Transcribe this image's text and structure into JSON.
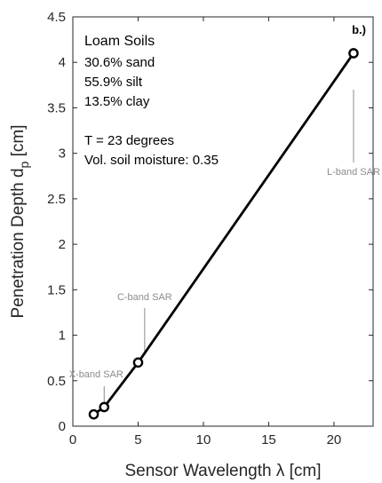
{
  "chart_data": {
    "type": "line",
    "panel_label": "b.)",
    "xlabel": "Sensor Wavelength λ [cm]",
    "ylabel": "Penetration Depth d",
    "ylabel_subscript": "p",
    "ylabel_unit": " [cm]",
    "xlim": [
      0,
      23
    ],
    "ylim": [
      0,
      4.5
    ],
    "xticks": [
      0,
      5,
      10,
      15,
      20
    ],
    "xtick_labels": [
      "0",
      "5",
      "10",
      "15",
      "20"
    ],
    "yticks": [
      0,
      0.5,
      1,
      1.5,
      2,
      2.5,
      3,
      3.5,
      4,
      4.5
    ],
    "ytick_labels": [
      "0",
      "0.5",
      "1",
      "1.5",
      "2",
      "2.5",
      "3",
      "3.5",
      "4",
      "4.5"
    ],
    "grid": false,
    "series": [
      {
        "x": [
          1.6,
          2.4,
          5.0,
          21.5
        ],
        "y": [
          0.13,
          0.21,
          0.7,
          4.1
        ],
        "color": "#000000",
        "marker": "open-circle"
      }
    ],
    "annotation_block": {
      "title": "Loam Soils",
      "lines": [
        "30.6% sand",
        "55.9% silt",
        "13.5% clay",
        "",
        "T = 23 degrees",
        "Vol. soil moisture: 0.35"
      ]
    },
    "callouts": [
      {
        "label": "X-band SAR",
        "x": 2.4,
        "y_top": 0.44,
        "y_bottom": 0.24
      },
      {
        "label": "C-band SAR",
        "x": 5.5,
        "y_top": 1.3,
        "y_bottom": 0.78
      },
      {
        "label": "L-band SAR",
        "x": 21.5,
        "y_top": 3.7,
        "y_bottom": 2.9
      }
    ],
    "callout_color": "#8c8c8c"
  }
}
